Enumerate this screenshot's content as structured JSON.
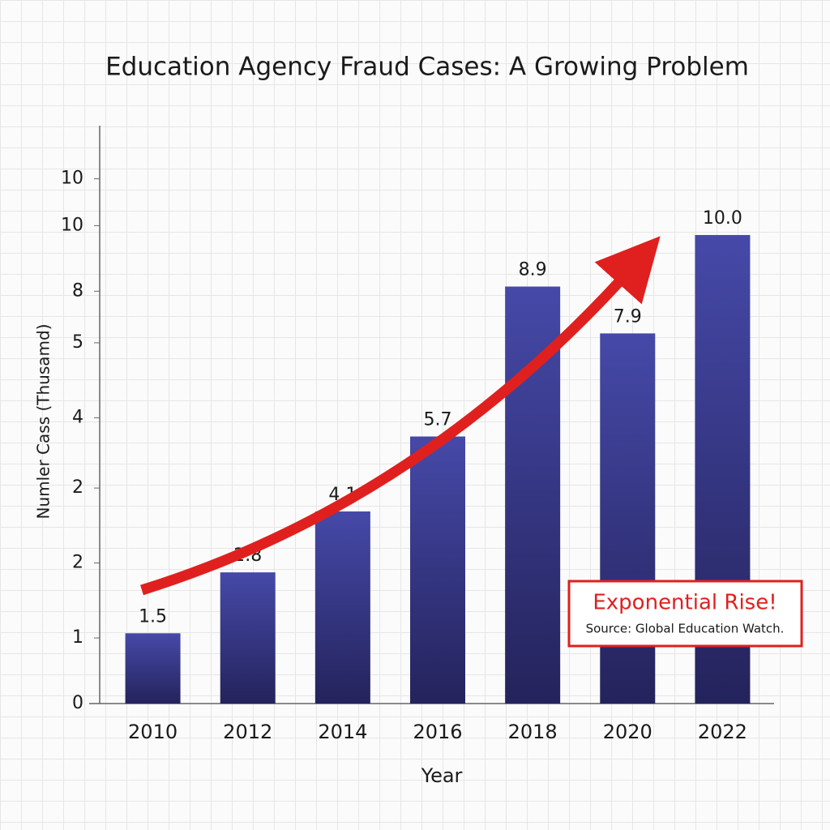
{
  "chart_data": {
    "type": "bar",
    "title": "Education Agency Fraud Cases: A Growing Problem",
    "x_label": "Year",
    "y_label": "Numler Cass (Thusamd)",
    "categories": [
      "2010",
      "2012",
      "2014",
      "2016",
      "2018",
      "2020",
      "2022"
    ],
    "values": [
      1.5,
      2.8,
      4.1,
      5.7,
      8.9,
      7.9,
      10
    ],
    "value_labels": [
      "1.5",
      "2.8",
      "4.1",
      "5.7",
      "8.9",
      "7.9",
      "10.0"
    ],
    "color": "#3a3c96",
    "ylim": [
      0,
      12.3
    ],
    "yticks": [
      0,
      {
        "value": 1.4,
        "label": "1"
      },
      {
        "value": 3.0,
        "label": "2"
      },
      {
        "value": 4.6,
        "label": "2"
      },
      {
        "value": 6.1,
        "label": "4"
      },
      {
        "value": 7.7,
        "label": "5"
      },
      {
        "value": 8.8,
        "label": "8"
      },
      {
        "value": 10.2,
        "label": "10"
      },
      {
        "value": 11.2,
        "label": "10"
      }
    ],
    "annotations": [
      "Exponential Rise!",
      "Source: Global Education Watch."
    ]
  }
}
